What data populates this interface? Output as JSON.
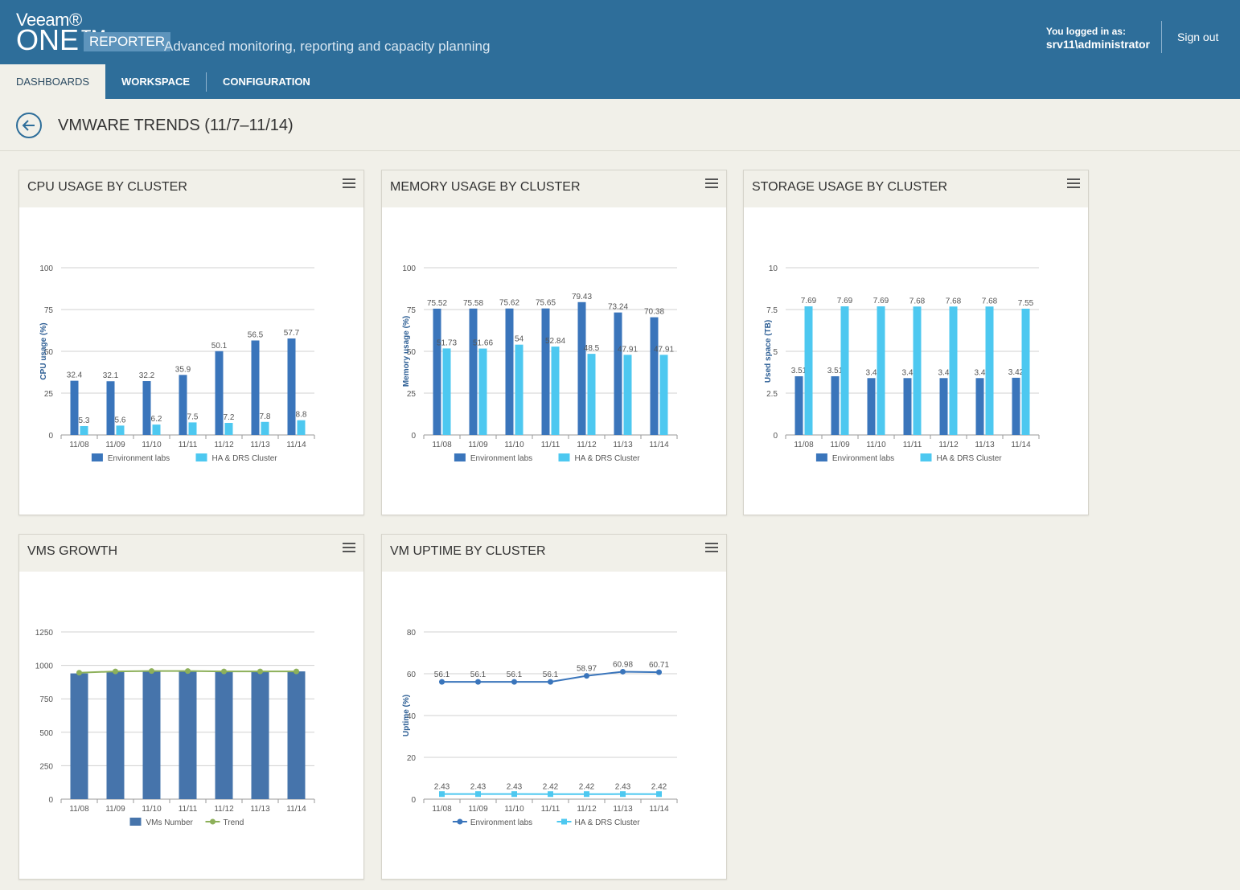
{
  "header": {
    "brand_veeam": "Veeam®",
    "brand_one": "ONE™",
    "brand_reporter": "REPORTER",
    "tagline": "Advanced monitoring, reporting and capacity planning",
    "user_label": "You logged in as:",
    "user_name": "srv11\\administrator",
    "signout": "Sign out",
    "colors": {
      "bar": "#2e6e9a",
      "accent": "#5d94bc"
    }
  },
  "nav": {
    "tabs": [
      "DASHBOARDS",
      "WORKSPACE",
      "CONFIGURATION"
    ],
    "active": "DASHBOARDS"
  },
  "page": {
    "title": "VMWARE TRENDS (11/7–11/14)",
    "back_icon": "arrow-left-circle-icon"
  },
  "panels": [
    {
      "title": "CPU USAGE BY CLUSTER"
    },
    {
      "title": "MEMORY USAGE BY CLUSTER"
    },
    {
      "title": "STORAGE USAGE BY CLUSTER"
    },
    {
      "title": "VMS GROWTH"
    },
    {
      "title": "VM UPTIME BY CLUSTER"
    }
  ],
  "chart_data": [
    {
      "type": "bar",
      "categories": [
        "11/08",
        "11/09",
        "11/10",
        "11/11",
        "11/12",
        "11/13",
        "11/14"
      ],
      "ylabel": "CPU usage (%)",
      "ylim": [
        0,
        100
      ],
      "yticks": [
        "0",
        "25",
        "50",
        "75",
        "100"
      ],
      "legend": "bottom",
      "series": [
        {
          "name": "Environment labs",
          "color": "#3a75bb",
          "values": [
            32.4,
            32.1,
            32.2,
            35.9,
            50.1,
            56.5,
            57.7
          ],
          "labels": [
            "32.4",
            "32.1",
            "32.2",
            "35.9",
            "50.1",
            "56.5",
            "57.7"
          ]
        },
        {
          "name": "HA & DRS Cluster",
          "color": "#4dc8f0",
          "values": [
            5.3,
            5.6,
            6.2,
            7.5,
            7.2,
            7.8,
            8.8
          ],
          "labels": [
            "5.3",
            "5.6",
            "6.2",
            "7.5",
            "7.2",
            "7.8",
            "8.8"
          ]
        }
      ]
    },
    {
      "type": "bar",
      "categories": [
        "11/08",
        "11/09",
        "11/10",
        "11/11",
        "11/12",
        "11/13",
        "11/14"
      ],
      "ylabel": "Memory usage (%)",
      "ylim": [
        0,
        100
      ],
      "yticks": [
        "0",
        "25",
        "50",
        "75",
        "100"
      ],
      "legend": "bottom",
      "series": [
        {
          "name": "Environment labs",
          "color": "#3a75bb",
          "values": [
            75.52,
            75.58,
            75.62,
            75.65,
            79.43,
            73.24,
            70.38
          ],
          "labels": [
            "75.52",
            "75.58",
            "75.62",
            "75.65",
            "79.43",
            "73.24",
            "70.38"
          ]
        },
        {
          "name": "HA & DRS Cluster",
          "color": "#4dc8f0",
          "values": [
            51.73,
            51.66,
            54,
            52.84,
            48.5,
            47.91,
            47.91
          ],
          "labels": [
            "51.73",
            "51.66",
            "54",
            "52.84",
            "48.5",
            "47.91",
            "47.91"
          ]
        }
      ]
    },
    {
      "type": "bar",
      "categories": [
        "11/08",
        "11/09",
        "11/10",
        "11/11",
        "11/12",
        "11/13",
        "11/14"
      ],
      "ylabel": "Used space (TB)",
      "ylim": [
        0,
        10
      ],
      "yticks": [
        "0",
        "2.5",
        "5",
        "7.5",
        "10"
      ],
      "legend": "bottom",
      "series": [
        {
          "name": "Environment labs",
          "color": "#3a75bb",
          "values": [
            3.51,
            3.51,
            3.4,
            3.4,
            3.4,
            3.4,
            3.42
          ],
          "labels": [
            "3.51",
            "3.51",
            "3.4",
            "3.4",
            "3.4",
            "3.4",
            "3.42"
          ]
        },
        {
          "name": "HA & DRS Cluster",
          "color": "#4dc8f0",
          "values": [
            7.69,
            7.69,
            7.69,
            7.68,
            7.68,
            7.68,
            7.55
          ],
          "labels": [
            "7.69",
            "7.69",
            "7.69",
            "7.68",
            "7.68",
            "7.68",
            "7.55"
          ]
        }
      ]
    },
    {
      "type": "bar+line",
      "categories": [
        "11/08",
        "11/09",
        "11/10",
        "11/11",
        "11/12",
        "11/13",
        "11/14"
      ],
      "ylabel": "",
      "ylim": [
        0,
        1250
      ],
      "yticks": [
        "0",
        "250",
        "500",
        "750",
        "1000",
        "1250"
      ],
      "legend": "bottom",
      "series": [
        {
          "name": "VMs Number",
          "kind": "bar",
          "color": "#4674ab",
          "values": [
            940,
            955,
            955,
            955,
            955,
            955,
            955
          ]
        },
        {
          "name": "Trend",
          "kind": "line",
          "color": "#8db05a",
          "values": [
            945,
            955,
            958,
            958,
            955,
            955,
            955
          ]
        }
      ]
    },
    {
      "type": "line",
      "categories": [
        "11/08",
        "11/09",
        "11/10",
        "11/11",
        "11/12",
        "11/13",
        "11/14"
      ],
      "ylabel": "Uptime (%)",
      "ylim": [
        0,
        80
      ],
      "yticks": [
        "0",
        "20",
        "40",
        "60",
        "80"
      ],
      "legend": "bottom",
      "series": [
        {
          "name": "Environment labs",
          "marker": "circle",
          "color": "#3a75bb",
          "values": [
            56.1,
            56.1,
            56.1,
            56.1,
            58.97,
            60.98,
            60.71
          ],
          "labels": [
            "56.1",
            "56.1",
            "56.1",
            "56.1",
            "58.97",
            "60.98",
            "60.71"
          ]
        },
        {
          "name": "HA & DRS Cluster",
          "marker": "square",
          "color": "#4dc8f0",
          "values": [
            2.43,
            2.43,
            2.43,
            2.42,
            2.42,
            2.43,
            2.42
          ],
          "labels": [
            "2.43",
            "2.43",
            "2.43",
            "2.42",
            "2.42",
            "2.43",
            "2.42"
          ]
        }
      ]
    }
  ]
}
